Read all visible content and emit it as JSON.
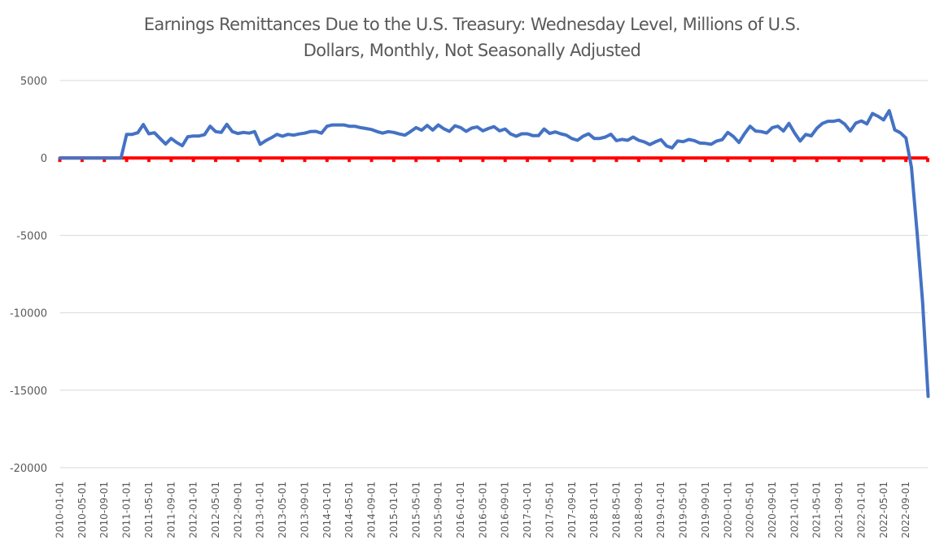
{
  "chart_data": {
    "type": "line",
    "title_lines": [
      "Earnings Remittances Due to the U.S. Treasury: Wednesday Level, Millions of U.S.",
      "Dollars, Monthly, Not Seasonally Adjusted"
    ],
    "title": "Earnings Remittances Due to the U.S. Treasury: Wednesday Level, Millions of U.S. Dollars, Monthly, Not Seasonally Adjusted",
    "xlabel": "",
    "ylabel": "",
    "ylim": [
      -20000,
      5000
    ],
    "yticks": [
      5000,
      0,
      -5000,
      -10000,
      -15000,
      -20000
    ],
    "grid": true,
    "legend": "none",
    "x_start": "2010-01-01",
    "x_end": "2022-12-01",
    "x_tick_interval_months": 4,
    "x_tick_labels": [
      "2010-01-01",
      "2010-05-01",
      "2010-09-01",
      "2011-01-01",
      "2011-05-01",
      "2011-09-01",
      "2012-01-01",
      "2012-05-01",
      "2012-09-01",
      "2013-01-01",
      "2013-05-01",
      "2013-09-01",
      "2014-01-01",
      "2014-05-01",
      "2014-09-01",
      "2015-01-01",
      "2015-05-01",
      "2015-09-01",
      "2016-01-01",
      "2016-05-01",
      "2016-09-01",
      "2017-01-01",
      "2017-05-01",
      "2017-09-01",
      "2018-01-01",
      "2018-05-01",
      "2018-09-01",
      "2019-01-01",
      "2019-05-01",
      "2019-09-01",
      "2020-01-01",
      "2020-05-01",
      "2020-09-01",
      "2021-01-01",
      "2021-05-01",
      "2021-09-01",
      "2022-01-01",
      "2022-05-01",
      "2022-09-01"
    ],
    "axis_line_color": "#ff0000",
    "series": [
      {
        "name": "Earnings Remittances Due to the U.S. Treasury",
        "color": "#4472c4",
        "values": [
          0,
          0,
          0,
          0,
          0,
          0,
          0,
          0,
          0,
          0,
          0,
          0,
          1525,
          1525,
          1630,
          2160,
          1560,
          1630,
          1260,
          900,
          1260,
          1000,
          790,
          1370,
          1420,
          1420,
          1500,
          2050,
          1700,
          1650,
          2170,
          1700,
          1580,
          1650,
          1600,
          1700,
          880,
          1120,
          1300,
          1525,
          1400,
          1525,
          1470,
          1550,
          1600,
          1700,
          1720,
          1600,
          2050,
          2130,
          2130,
          2130,
          2050,
          2050,
          1960,
          1900,
          1840,
          1700,
          1600,
          1700,
          1650,
          1550,
          1470,
          1700,
          1960,
          1790,
          2100,
          1800,
          2130,
          1880,
          1720,
          2080,
          1960,
          1720,
          1930,
          2000,
          1750,
          1900,
          2020,
          1750,
          1870,
          1550,
          1400,
          1560,
          1560,
          1440,
          1440,
          1870,
          1580,
          1680,
          1560,
          1470,
          1250,
          1140,
          1400,
          1560,
          1260,
          1260,
          1350,
          1530,
          1120,
          1200,
          1140,
          1350,
          1140,
          1040,
          860,
          1040,
          1180,
          770,
          650,
          1090,
          1050,
          1190,
          1120,
          960,
          940,
          880,
          1090,
          1180,
          1650,
          1390,
          1000,
          1560,
          2050,
          1740,
          1700,
          1610,
          1960,
          2050,
          1740,
          2230,
          1610,
          1090,
          1520,
          1430,
          1910,
          2230,
          2370,
          2370,
          2440,
          2190,
          1740,
          2250,
          2390,
          2200,
          2870,
          2690,
          2460,
          3050,
          1810,
          1630,
          1290,
          -600,
          -4800,
          -9300,
          -15400
        ]
      }
    ]
  }
}
